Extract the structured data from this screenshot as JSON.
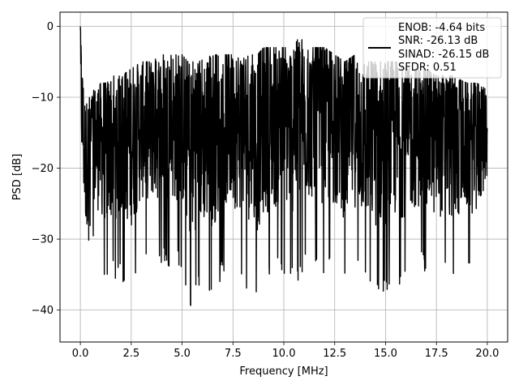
{
  "chart_data": {
    "type": "line",
    "title": "",
    "xlabel": "Frequency [MHz]",
    "ylabel": "PSD [dB]",
    "xlim": [
      -1.0,
      21.0
    ],
    "ylim": [
      -44.5,
      2.0
    ],
    "xticks": [
      0.0,
      2.5,
      5.0,
      7.5,
      10.0,
      12.5,
      15.0,
      17.5,
      20.0
    ],
    "xtick_labels": [
      "0.0",
      "2.5",
      "5.0",
      "7.5",
      "10.0",
      "12.5",
      "15.0",
      "17.5",
      "20.0"
    ],
    "yticks": [
      0,
      -10,
      -20,
      -30,
      -40
    ],
    "ytick_labels": [
      "0",
      "−10",
      "−20",
      "−30",
      "−40"
    ],
    "grid": true,
    "legend_position": "top-right",
    "legend": {
      "line_1": "ENOB: -4.64 bits",
      "line_2": "SNR: -26.13 dB",
      "line_3": "SINAD: -26.15 dB",
      "line_4": "SFDR: 0.51"
    },
    "series": [
      {
        "color": "#000000",
        "x": [
          0.0,
          0.05,
          0.1,
          0.2,
          0.3,
          0.45,
          0.6,
          0.8,
          1.0,
          1.3,
          1.6,
          2.0,
          2.5,
          3.0,
          3.5,
          4.0,
          4.5,
          5.0,
          5.3,
          5.8,
          6.5,
          7.0,
          7.5,
          8.0,
          8.7,
          9.0,
          9.5,
          10.0,
          10.5,
          10.8,
          11.0,
          11.5,
          12.0,
          12.5,
          13.0,
          13.5,
          14.0,
          14.3,
          15.0,
          15.5,
          16.0,
          16.5,
          17.0,
          17.5,
          18.0,
          18.3,
          19.0,
          19.5,
          20.0
        ],
        "low": [
          -19,
          -26,
          -27,
          -35,
          -37,
          -30,
          -30,
          -33,
          -35,
          -37,
          -36,
          -36,
          -38,
          -33,
          -33,
          -34,
          -34,
          -34,
          -42,
          -38,
          -39,
          -35,
          -35,
          -36,
          -40,
          -37,
          -36,
          -35,
          -37,
          -36,
          -34,
          -34,
          -35,
          -35,
          -37,
          -35,
          -37,
          -39,
          -38,
          -37,
          -36,
          -34,
          -35,
          -36,
          -35,
          -37,
          -34,
          -35,
          -27
        ],
        "high": [
          0,
          -3,
          -6,
          -10,
          -11,
          -10,
          -9,
          -9,
          -8,
          -8,
          -7,
          -7,
          -6,
          -5,
          -5,
          -4,
          -4,
          -4,
          -5,
          -5,
          -4,
          -4,
          -4,
          -4,
          -4,
          -3,
          -3,
          -3,
          -3,
          -1,
          -3,
          -3,
          -3,
          -4,
          -5,
          -4,
          -5,
          -5,
          -5,
          -5,
          -6,
          -6,
          -6,
          -7,
          -7,
          -7,
          -8,
          -8,
          -9
        ]
      }
    ]
  }
}
